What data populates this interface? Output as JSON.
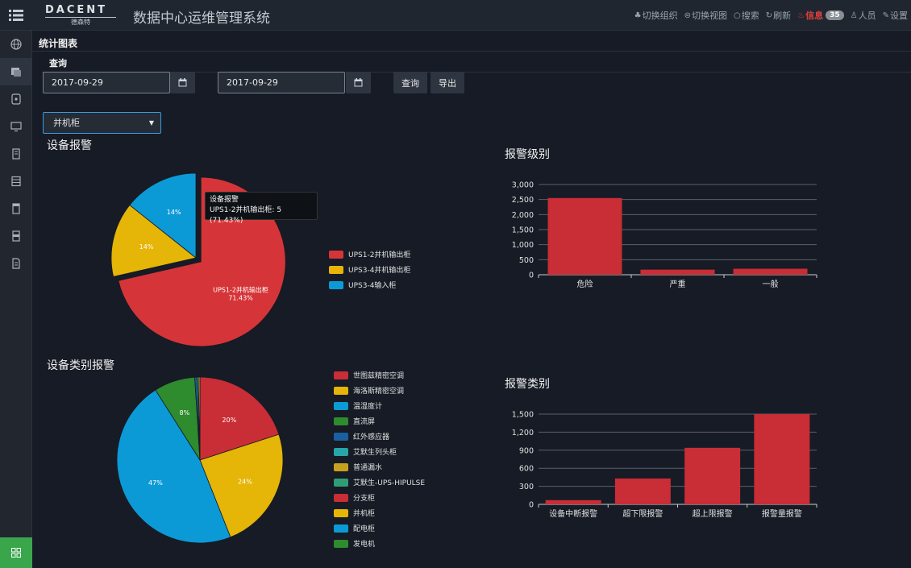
{
  "header": {
    "logo_text": "DACENT",
    "logo_sub": "德森特",
    "title": "数据中心运维管理系统",
    "actions": [
      {
        "icon": "org-icon",
        "glyph": "♣",
        "label": "切换组织"
      },
      {
        "icon": "view-icon",
        "glyph": "⊜",
        "label": "切换视图"
      },
      {
        "icon": "search-icon",
        "glyph": "○",
        "label": "搜索"
      },
      {
        "icon": "refresh-icon",
        "glyph": "↻",
        "label": "刷新"
      },
      {
        "icon": "bell-icon",
        "glyph": "♨",
        "label": "信息",
        "badge": "35"
      },
      {
        "icon": "user-icon",
        "glyph": "♙",
        "label": "人员"
      },
      {
        "icon": "wrench-icon",
        "glyph": "✎",
        "label": "设置"
      }
    ]
  },
  "sidebar": {
    "items": [
      {
        "icon": "globe-icon"
      },
      {
        "icon": "server-stack-icon"
      },
      {
        "icon": "database-icon"
      },
      {
        "icon": "monitor-icon"
      },
      {
        "icon": "cabinet-icon"
      },
      {
        "icon": "list-icon"
      },
      {
        "icon": "rack-icon"
      },
      {
        "icon": "rack-alt-icon"
      },
      {
        "icon": "document-icon"
      }
    ],
    "bottom_icon": "grid-icon"
  },
  "page": {
    "section_title": "统计图表",
    "query_label": "查询"
  },
  "filters": {
    "start_date": "2017-09-29",
    "end_date": "2017-09-29",
    "query_label": "查询",
    "export_label": "导出",
    "device_type": "并机柜"
  },
  "colors": {
    "red": "#d03239",
    "yellow": "#e5b508",
    "blue": "#0c9ad6",
    "bar": "#c92d35",
    "grid": "#5a606a"
  },
  "tooltip": {
    "title": "设备报警",
    "text": "UPS1-2并机输出柜: 5 (71.43%)"
  },
  "chart_data": [
    {
      "type": "pie",
      "title": "设备报警",
      "slices": [
        {
          "name": "UPS1-2并机输出柜",
          "value": 5,
          "pct": 71.43,
          "label": "UPS1-2并机输出柜\n71.43%",
          "color": "#d53538"
        },
        {
          "name": "UPS3-4并机输出柜",
          "value": 1,
          "pct": 14.29,
          "label": "14%",
          "color": "#e5b508"
        },
        {
          "name": "UPS3-4输入柜",
          "value": 1,
          "pct": 14.29,
          "label": "14%",
          "color": "#0c9ad6"
        }
      ]
    },
    {
      "type": "bar",
      "title": "报警级别",
      "categories": [
        "危险",
        "严重",
        "一般"
      ],
      "values": [
        2550,
        170,
        200
      ],
      "ylim": [
        0,
        3000
      ],
      "yticks": [
        "0",
        "500",
        "1,000",
        "1,500",
        "2,000",
        "2,500",
        "3,000"
      ]
    },
    {
      "type": "pie",
      "title": "设备类别报警",
      "legend": [
        {
          "name": "世图兹精密空调",
          "color": "#c92d35"
        },
        {
          "name": "海洛斯精密空调",
          "color": "#e5b508"
        },
        {
          "name": "温湿度计",
          "color": "#0c9ad6"
        },
        {
          "name": "直流屏",
          "color": "#2e8b2e"
        },
        {
          "name": "红外感应器",
          "color": "#1a5fa0"
        },
        {
          "name": "艾默生列头柜",
          "color": "#27a5a8"
        },
        {
          "name": "普通漏水",
          "color": "#c8a020"
        },
        {
          "name": "艾默生-UPS-HIPULSE",
          "color": "#2f9e74"
        },
        {
          "name": "分支柜",
          "color": "#c92d35"
        },
        {
          "name": "并机柜",
          "color": "#e5b508"
        },
        {
          "name": "配电柜",
          "color": "#0c9ad6"
        },
        {
          "name": "发电机",
          "color": "#2e8b2e"
        }
      ],
      "slices": [
        {
          "name": "世图兹精密空调",
          "pct": 20,
          "label": "20%",
          "color": "#c92d35"
        },
        {
          "name": "海洛斯精密空调",
          "pct": 24,
          "label": "24%",
          "color": "#e5b508"
        },
        {
          "name": "温湿度计",
          "pct": 47,
          "label": "47%",
          "color": "#0c9ad6"
        },
        {
          "name": "直流屏",
          "pct": 8,
          "label": "8%",
          "color": "#2e8b2e"
        },
        {
          "name": "红外感应器",
          "pct": 0.4,
          "label": "",
          "color": "#1a5fa0"
        },
        {
          "name": "艾默生列头柜",
          "pct": 0.3,
          "label": "",
          "color": "#27a5a8"
        },
        {
          "name": "普通漏水",
          "pct": 0.3,
          "label": "",
          "color": "#c8a020"
        }
      ]
    },
    {
      "type": "bar",
      "title": "报警类别",
      "categories": [
        "设备中断报警",
        "超下限报警",
        "超上限报警",
        "报警量报警"
      ],
      "values": [
        70,
        430,
        940,
        1500
      ],
      "ylim": [
        0,
        1500
      ],
      "yticks": [
        "0",
        "300",
        "600",
        "900",
        "1,200",
        "1,500"
      ]
    }
  ]
}
